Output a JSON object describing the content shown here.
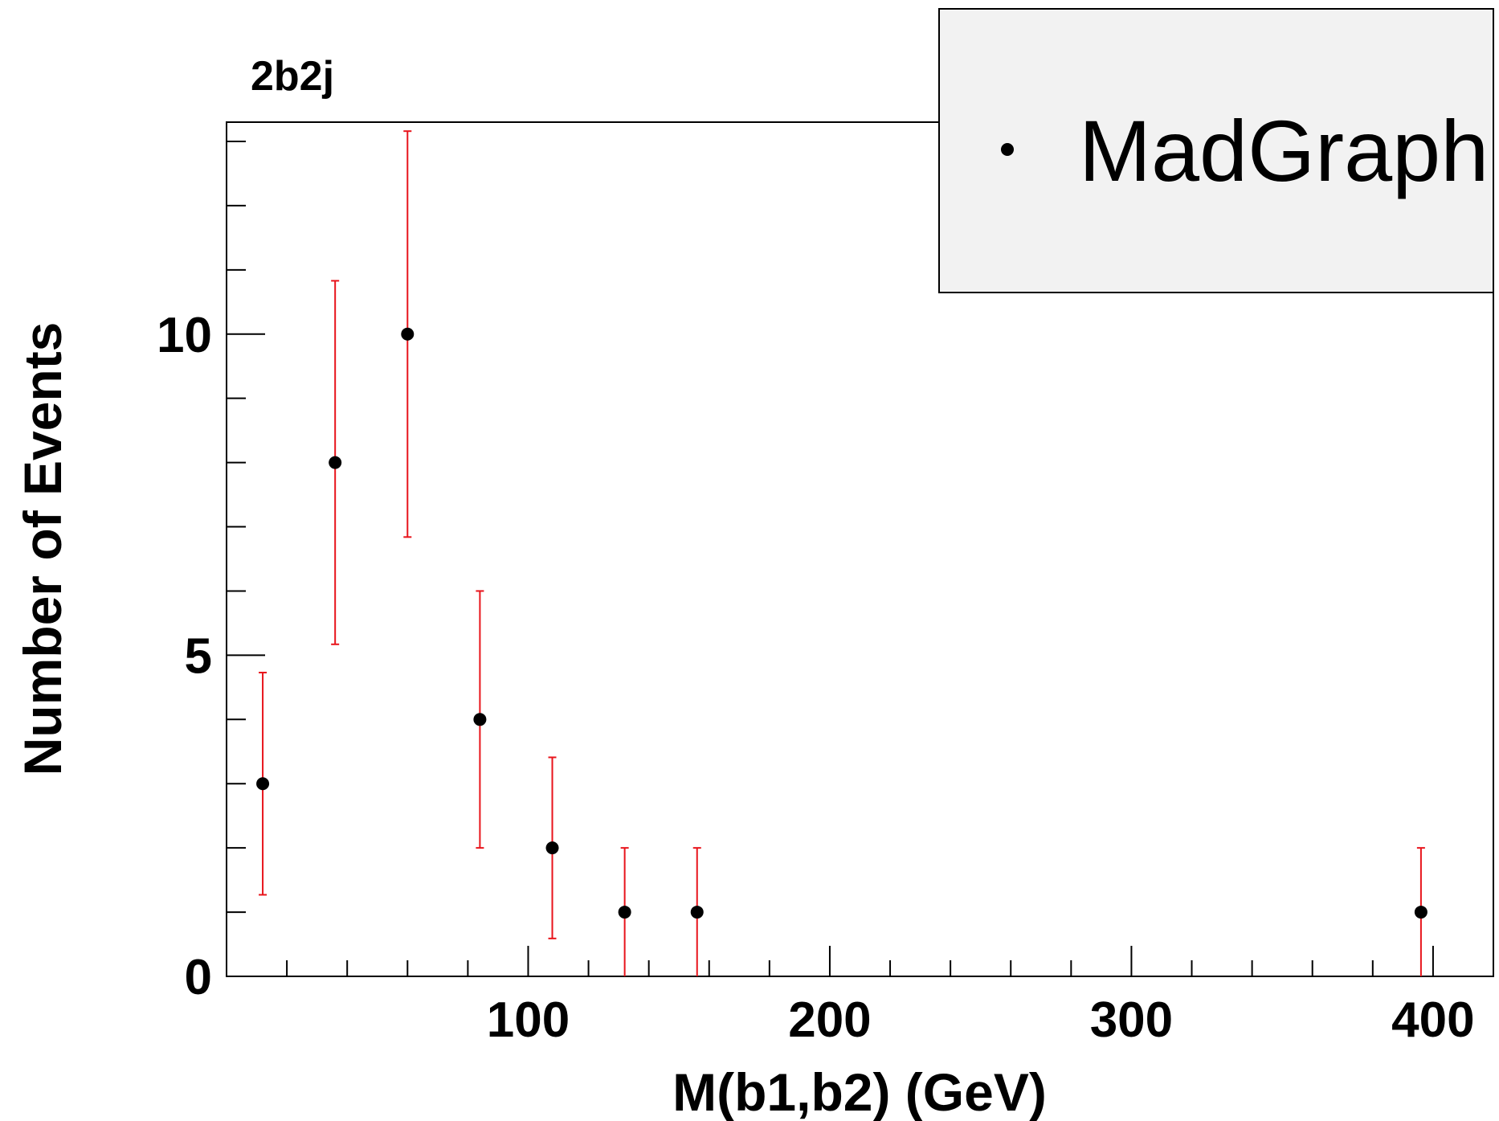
{
  "chart_data": {
    "type": "scatter",
    "title": "2b2j",
    "xlabel": "M(b1,b2) (GeV)",
    "ylabel": "Number of Events",
    "xlim": [
      0,
      420
    ],
    "ylim": [
      0,
      13.3
    ],
    "x_major_ticks": [
      100,
      200,
      300,
      400
    ],
    "x_tick_labels": [
      "100",
      "200",
      "300",
      "400"
    ],
    "y_major_ticks": [
      0,
      5,
      10
    ],
    "y_tick_labels": [
      "0",
      "5",
      "10"
    ],
    "grid": false,
    "legend": {
      "position": "top-right",
      "entries": [
        "MadGraph"
      ]
    },
    "colors": {
      "points": "#000000",
      "error_bars": "#e8141b",
      "legend_fill": "#f2f2f2"
    },
    "series": [
      {
        "name": "MadGraph",
        "points": [
          {
            "x": 12,
            "y": 3,
            "err_low": 1.73,
            "err_high": 1.73
          },
          {
            "x": 36,
            "y": 8,
            "err_low": 2.83,
            "err_high": 2.83
          },
          {
            "x": 60,
            "y": 10,
            "err_low": 3.16,
            "err_high": 3.16
          },
          {
            "x": 84,
            "y": 4,
            "err_low": 2,
            "err_high": 2
          },
          {
            "x": 108,
            "y": 2,
            "err_low": 1.41,
            "err_high": 1.41
          },
          {
            "x": 132,
            "y": 1,
            "err_low": 1,
            "err_high": 1
          },
          {
            "x": 156,
            "y": 1,
            "err_low": 1,
            "err_high": 1
          },
          {
            "x": 396,
            "y": 1,
            "err_low": 1,
            "err_high": 1
          }
        ]
      }
    ]
  }
}
